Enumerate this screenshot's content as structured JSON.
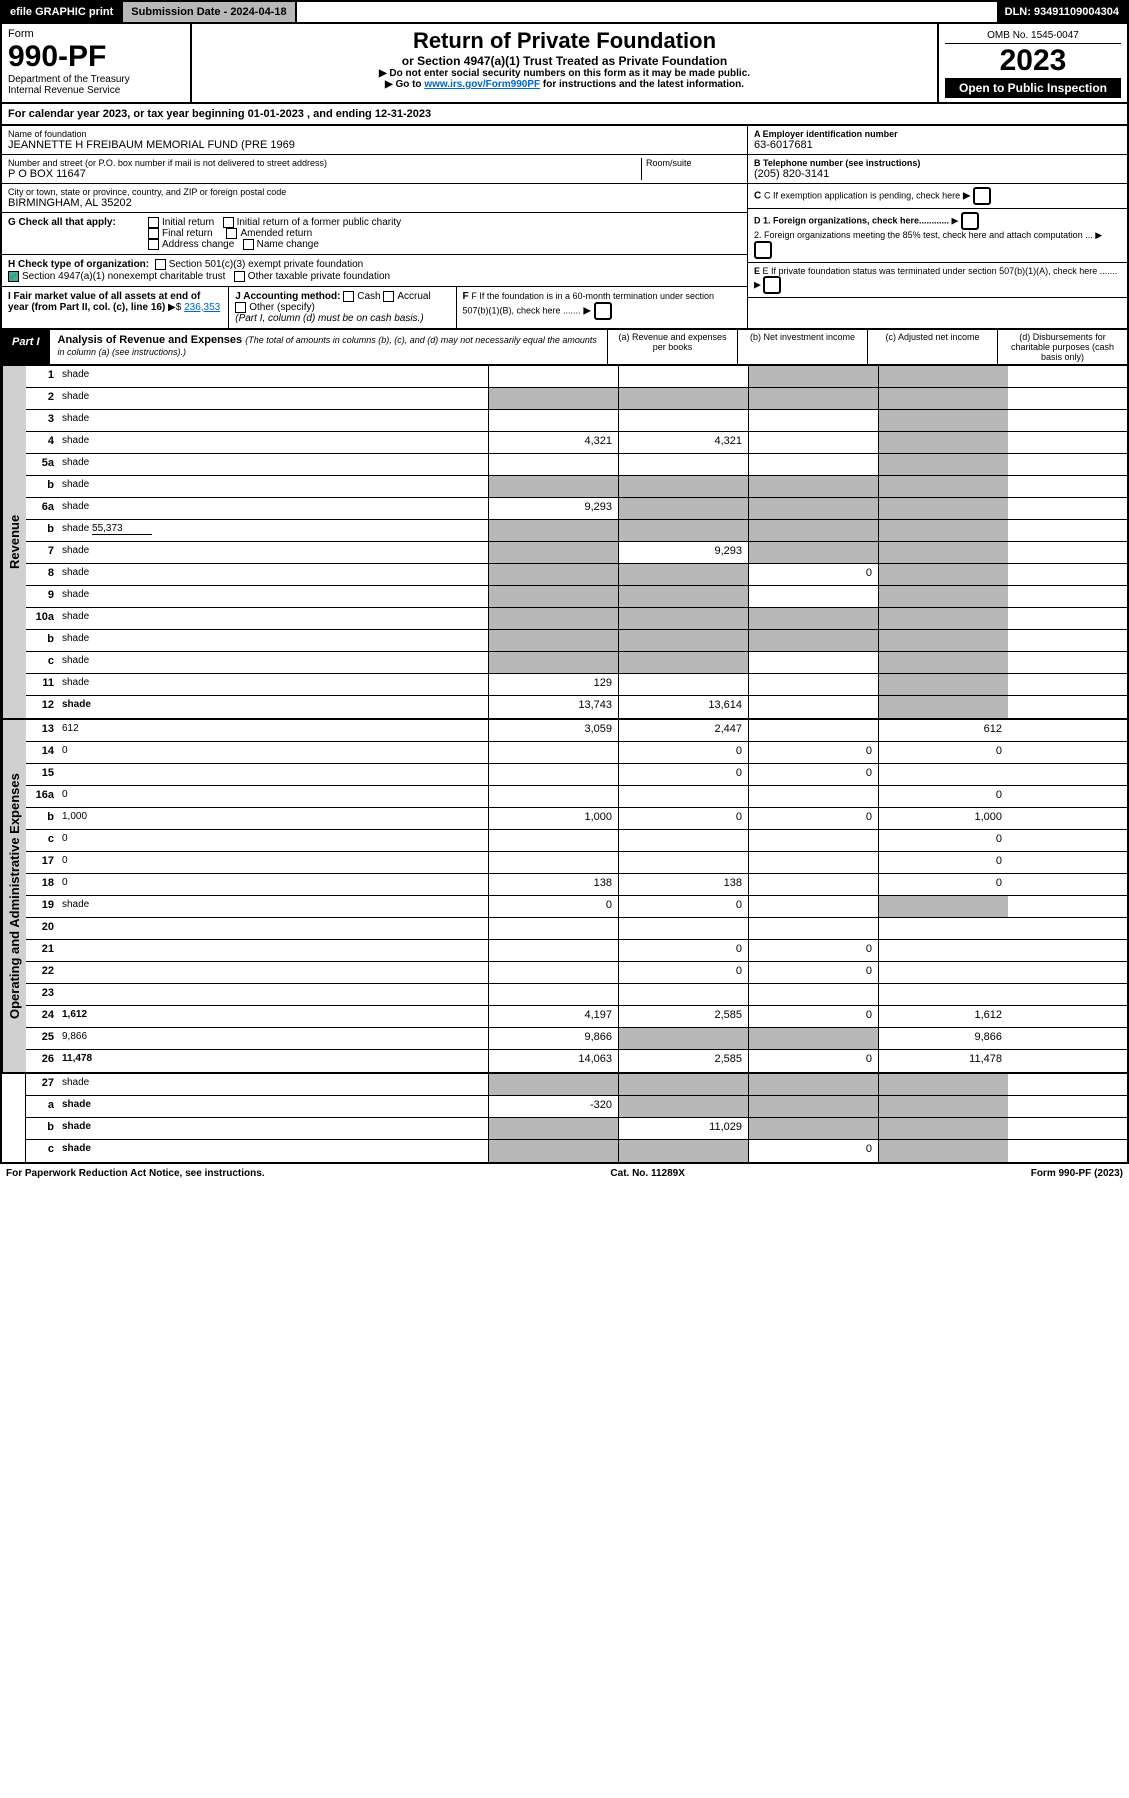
{
  "topbar": {
    "efile": "efile GRAPHIC print",
    "subdate_label": "Submission Date - 2024-04-18",
    "dln": "DLN: 93491109004304"
  },
  "header": {
    "form_word": "Form",
    "form_no": "990-PF",
    "dept": "Department of the Treasury",
    "irs": "Internal Revenue Service",
    "title": "Return of Private Foundation",
    "subtitle": "or Section 4947(a)(1) Trust Treated as Private Foundation",
    "instr1": "▶ Do not enter social security numbers on this form as it may be made public.",
    "instr2_pre": "▶ Go to ",
    "instr2_link": "www.irs.gov/Form990PF",
    "instr2_post": " for instructions and the latest information.",
    "omb": "OMB No. 1545-0047",
    "year": "2023",
    "open": "Open to Public Inspection"
  },
  "calendar": {
    "text_pre": "For calendar year 2023, or tax year beginning ",
    "begin": "01-01-2023",
    "mid": " , and ending ",
    "end": "12-31-2023"
  },
  "info": {
    "name_lbl": "Name of foundation",
    "name": "JEANNETTE H FREIBAUM MEMORIAL FUND (PRE 1969",
    "addr_lbl": "Number and street (or P.O. box number if mail is not delivered to street address)",
    "addr": "P O BOX 11647",
    "room_lbl": "Room/suite",
    "city_lbl": "City or town, state or province, country, and ZIP or foreign postal code",
    "city": "BIRMINGHAM, AL  35202",
    "ein_lbl": "A Employer identification number",
    "ein": "63-6017681",
    "phone_lbl": "B Telephone number (see instructions)",
    "phone": "(205) 820-3141",
    "c_lbl": "C If exemption application is pending, check here",
    "g_lbl": "G Check all that apply:",
    "g_opts": [
      "Initial return",
      "Initial return of a former public charity",
      "Final return",
      "Amended return",
      "Address change",
      "Name change"
    ],
    "d1": "D 1. Foreign organizations, check here............",
    "d2": "2. Foreign organizations meeting the 85% test, check here and attach computation ...",
    "h_lbl": "H Check type of organization:",
    "h1": "Section 501(c)(3) exempt private foundation",
    "h2": "Section 4947(a)(1) nonexempt charitable trust",
    "h3": "Other taxable private foundation",
    "e_lbl": "E If private foundation status was terminated under section 507(b)(1)(A), check here .......",
    "i_lbl": "I Fair market value of all assets at end of year (from Part II, col. (c), line 16)",
    "i_val": "236,353",
    "j_lbl": "J Accounting method:",
    "j_cash": "Cash",
    "j_accrual": "Accrual",
    "j_other": "Other (specify)",
    "j_note": "(Part I, column (d) must be on cash basis.)",
    "f_lbl": "F If the foundation is in a 60-month termination under section 507(b)(1)(B), check here ......."
  },
  "part1": {
    "label": "Part I",
    "title": "Analysis of Revenue and Expenses",
    "note": "(The total of amounts in columns (b), (c), and (d) may not necessarily equal the amounts in column (a) (see instructions).)",
    "col_a": "(a) Revenue and expenses per books",
    "col_b": "(b) Net investment income",
    "col_c": "(c) Adjusted net income",
    "col_d": "(d) Disbursements for charitable purposes (cash basis only)"
  },
  "side_revenue": "Revenue",
  "side_expenses": "Operating and Administrative Expenses",
  "rows": [
    {
      "n": "1",
      "d": "shade",
      "a": "",
      "b": "",
      "c": "shade"
    },
    {
      "n": "2",
      "d": "shade",
      "a": "shade",
      "b": "shade",
      "c": "shade",
      "nob": true
    },
    {
      "n": "3",
      "d": "shade",
      "a": "",
      "b": "",
      "c": ""
    },
    {
      "n": "4",
      "d": "shade",
      "a": "4,321",
      "b": "4,321",
      "c": ""
    },
    {
      "n": "5a",
      "d": "shade",
      "a": "",
      "b": "",
      "c": ""
    },
    {
      "n": "b",
      "d": "shade",
      "a": "shade",
      "b": "shade",
      "c": "shade",
      "sub": true
    },
    {
      "n": "6a",
      "d": "shade",
      "a": "9,293",
      "b": "shade",
      "c": "shade"
    },
    {
      "n": "b",
      "d": "shade",
      "a": "shade",
      "b": "shade",
      "c": "shade",
      "sub": true,
      "inline": "55,373"
    },
    {
      "n": "7",
      "d": "shade",
      "a": "shade",
      "b": "9,293",
      "c": "shade"
    },
    {
      "n": "8",
      "d": "shade",
      "a": "shade",
      "b": "shade",
      "c": "0"
    },
    {
      "n": "9",
      "d": "shade",
      "a": "shade",
      "b": "shade",
      "c": ""
    },
    {
      "n": "10a",
      "d": "shade",
      "a": "shade",
      "b": "shade",
      "c": "shade",
      "sub": true
    },
    {
      "n": "b",
      "d": "shade",
      "a": "shade",
      "b": "shade",
      "c": "shade",
      "sub": true
    },
    {
      "n": "c",
      "d": "shade",
      "a": "shade",
      "b": "shade",
      "c": ""
    },
    {
      "n": "11",
      "d": "shade",
      "a": "129",
      "b": "",
      "c": ""
    },
    {
      "n": "12",
      "d": "shade",
      "a": "13,743",
      "b": "13,614",
      "c": "",
      "bold": true
    }
  ],
  "exp_rows": [
    {
      "n": "13",
      "d": "612",
      "a": "3,059",
      "b": "2,447",
      "c": ""
    },
    {
      "n": "14",
      "d": "0",
      "a": "",
      "b": "0",
      "c": "0"
    },
    {
      "n": "15",
      "d": "",
      "a": "",
      "b": "0",
      "c": "0"
    },
    {
      "n": "16a",
      "d": "0",
      "a": "",
      "b": "",
      "c": ""
    },
    {
      "n": "b",
      "d": "1,000",
      "a": "1,000",
      "b": "0",
      "c": "0"
    },
    {
      "n": "c",
      "d": "0",
      "a": "",
      "b": "",
      "c": ""
    },
    {
      "n": "17",
      "d": "0",
      "a": "",
      "b": "",
      "c": ""
    },
    {
      "n": "18",
      "d": "0",
      "a": "138",
      "b": "138",
      "c": ""
    },
    {
      "n": "19",
      "d": "shade",
      "a": "0",
      "b": "0",
      "c": ""
    },
    {
      "n": "20",
      "d": "",
      "a": "",
      "b": "",
      "c": ""
    },
    {
      "n": "21",
      "d": "",
      "a": "",
      "b": "0",
      "c": "0"
    },
    {
      "n": "22",
      "d": "",
      "a": "",
      "b": "0",
      "c": "0"
    },
    {
      "n": "23",
      "d": "",
      "a": "",
      "b": "",
      "c": ""
    },
    {
      "n": "24",
      "d": "1,612",
      "a": "4,197",
      "b": "2,585",
      "c": "0",
      "bold": true
    },
    {
      "n": "25",
      "d": "9,866",
      "a": "9,866",
      "b": "shade",
      "c": "shade"
    },
    {
      "n": "26",
      "d": "11,478",
      "a": "14,063",
      "b": "2,585",
      "c": "0",
      "bold": true
    }
  ],
  "bottom_rows": [
    {
      "n": "27",
      "d": "shade",
      "a": "shade",
      "b": "shade",
      "c": "shade"
    },
    {
      "n": "a",
      "d": "shade",
      "a": "-320",
      "b": "shade",
      "c": "shade",
      "bold": true
    },
    {
      "n": "b",
      "d": "shade",
      "a": "shade",
      "b": "11,029",
      "c": "shade",
      "bold": true
    },
    {
      "n": "c",
      "d": "shade",
      "a": "shade",
      "b": "shade",
      "c": "0",
      "bold": true
    }
  ],
  "footer": {
    "left": "For Paperwork Reduction Act Notice, see instructions.",
    "mid": "Cat. No. 11289X",
    "right": "Form 990-PF (2023)"
  }
}
